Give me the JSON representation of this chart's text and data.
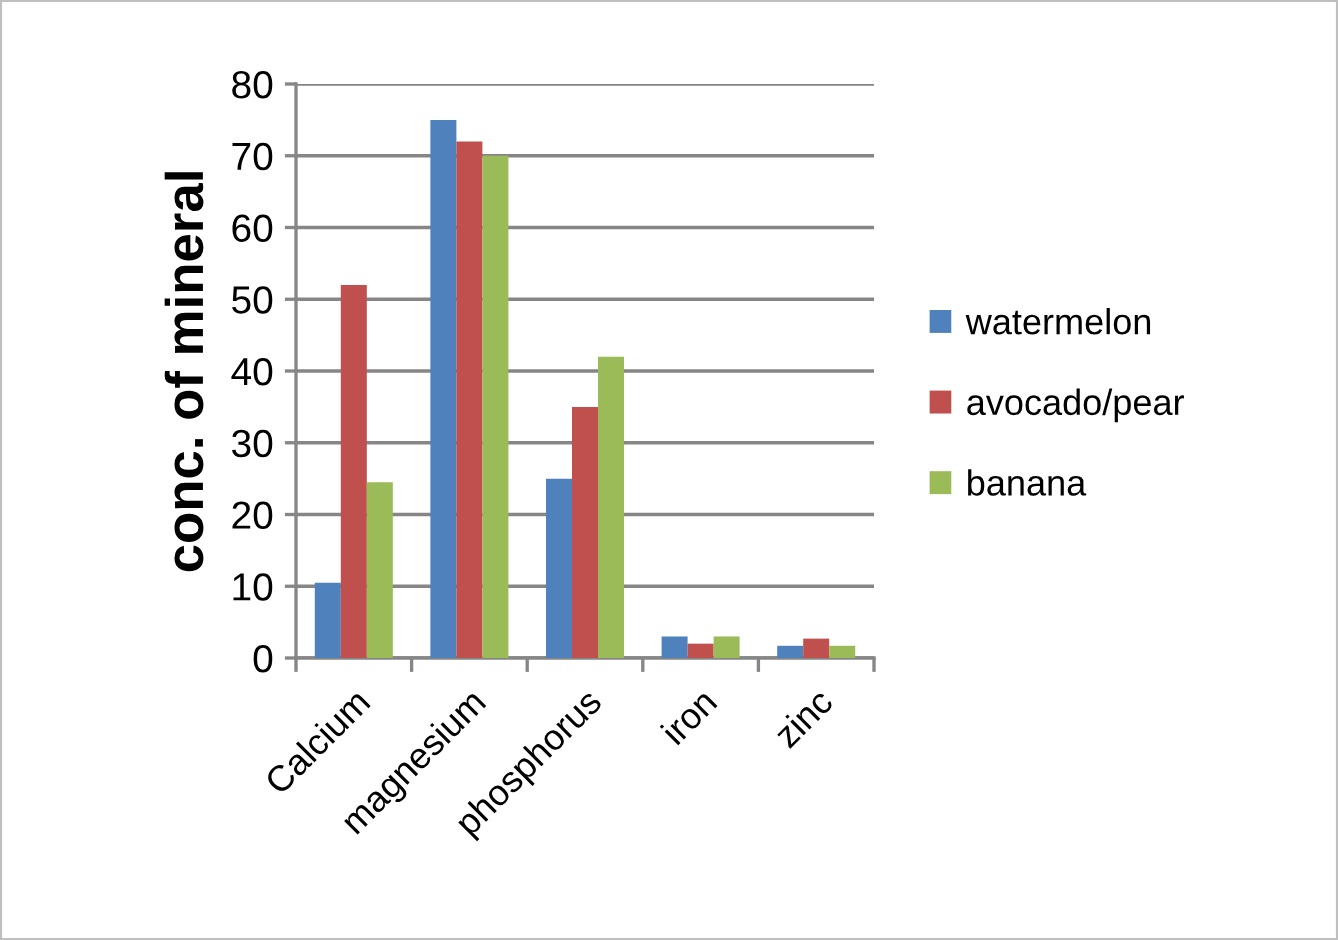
{
  "chart_data": {
    "type": "bar",
    "ylabel": "conc. of mineral",
    "categories": [
      "Calcium",
      "magnesium",
      "phosphorus",
      "iron",
      "zinc"
    ],
    "series": [
      {
        "name": "watermelon",
        "color": "#4f81bd",
        "values": [
          10.5,
          75,
          25,
          3,
          1.7
        ]
      },
      {
        "name": "avocado/pear",
        "color": "#c0504d",
        "values": [
          52,
          72,
          35,
          2,
          2.7
        ]
      },
      {
        "name": "banana",
        "color": "#9bbb59",
        "values": [
          24.5,
          70,
          42,
          3,
          1.7
        ]
      }
    ],
    "ylim": [
      0,
      80
    ],
    "yticks": [
      0,
      10,
      20,
      30,
      40,
      50,
      60,
      70,
      80
    ],
    "grid": "y",
    "legend": "right"
  }
}
